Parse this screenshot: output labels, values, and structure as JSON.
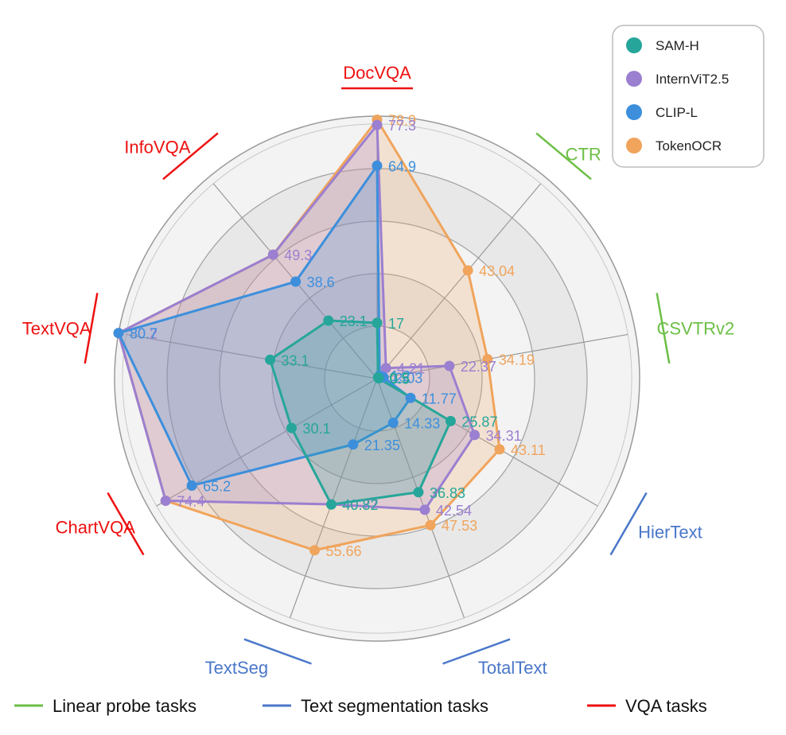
{
  "chart_data": {
    "type": "radar",
    "categories": [
      {
        "name": "DocVQA",
        "group": "vqa"
      },
      {
        "name": "CTR",
        "group": "linear"
      },
      {
        "name": "CSVTRv2",
        "group": "linear"
      },
      {
        "name": "HierText",
        "group": "seg"
      },
      {
        "name": "TotalText",
        "group": "seg"
      },
      {
        "name": "TextSeg",
        "group": "seg"
      },
      {
        "name": "ChartVQA",
        "group": "vqa"
      },
      {
        "name": "TextVQA",
        "group": "vqa"
      },
      {
        "name": "InfoVQA",
        "group": "vqa"
      }
    ],
    "series": [
      {
        "name": "SAM-H",
        "color": "#26a69a",
        "values": [
          17,
          0.5,
          0.5,
          25.87,
          36.83,
          40.82,
          30.1,
          33.1,
          23.1
        ],
        "labels": [
          "17",
          "0.5",
          "0.5",
          "25.87",
          "36.83",
          "40.82",
          "30.1",
          "33.1",
          "23.1"
        ]
      },
      {
        "name": "InternViT2.5",
        "color": "#9b7fd0",
        "values": [
          77.3,
          4.21,
          22.37,
          34.31,
          42.54,
          40.77,
          74.4,
          80.2,
          49.3
        ],
        "labels": [
          "77.3",
          "4.21",
          "22.37",
          "34.31",
          "42.54",
          "40.77",
          "74.4",
          "80.2",
          "49.3"
        ]
      },
      {
        "name": "CLIP-L",
        "color": "#3d8fdc",
        "values": [
          64.9,
          1.2,
          2.03,
          11.77,
          14.33,
          21.35,
          65.2,
          80.7,
          38.6
        ],
        "labels": [
          "64.9",
          "1.2",
          "2.03",
          "11.77",
          "14.33",
          "21.35",
          "65.2",
          "80.7",
          "38.6"
        ]
      },
      {
        "name": "TokenOCR",
        "color": "#f0a45c",
        "values": [
          78.9,
          43.04,
          34.19,
          43.11,
          47.53,
          55.66,
          74.4,
          80.1,
          49.3
        ],
        "labels": [
          "78.9",
          "43.04",
          "34.19",
          "43.11",
          "47.53",
          "55.66",
          "",
          "",
          ""
        ]
      }
    ],
    "legend": {
      "placement": "top-right"
    },
    "task_groups": [
      {
        "key": "linear",
        "label": "Linear probe tasks",
        "color": "#6cbf45"
      },
      {
        "key": "seg",
        "label": "Text segmentation tasks",
        "color": "#4a77c9"
      },
      {
        "key": "vqa",
        "label": "VQA tasks",
        "color": "#ee1111"
      }
    ]
  }
}
